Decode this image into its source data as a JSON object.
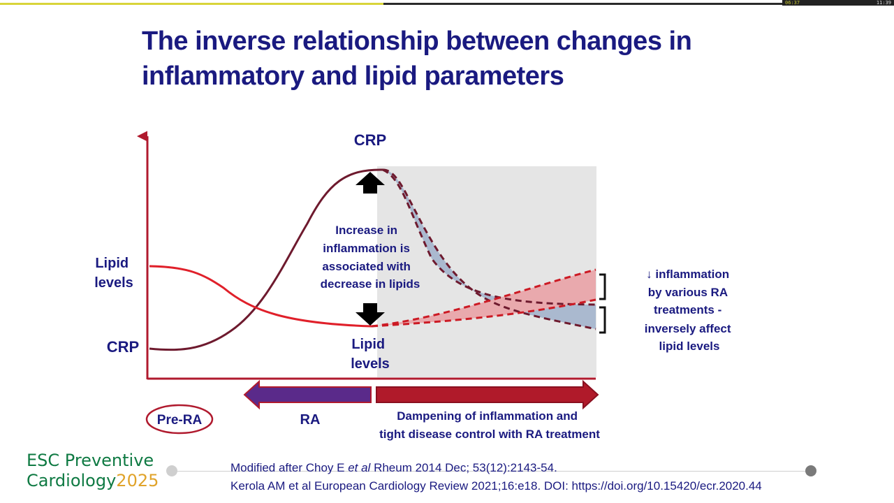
{
  "player": {
    "progress_fraction": 0.49,
    "elapsed_time": "06:37",
    "total_time": "11:39"
  },
  "slide": {
    "title_line1": "The inverse relationship between changes in",
    "title_line2": "inflammatory and lipid parameters"
  },
  "diagram": {
    "crp_top_label": "CRP",
    "increase_text": [
      "Increase in",
      "inflammation is",
      "associated with",
      "decrease in lipids"
    ],
    "lipid_mid_label": [
      "Lipid",
      "levels"
    ],
    "lipid_left_label": [
      "Lipid",
      "levels"
    ],
    "crp_left_label": "CRP",
    "right_note": [
      "↓ inflammation",
      "by various RA",
      "treatments -",
      "inversely affect",
      "lipid levels"
    ],
    "pre_ra_label": "Pre-RA",
    "ra_label": "RA",
    "treatment_label": [
      "Dampening of inflammation and",
      "tight disease control with RA treatment"
    ],
    "colors": {
      "crp_curve": "#6e1a2e",
      "lipid_curve": "#e0202a",
      "axis": "#b01a2e",
      "treatment_shade": "#e5e5e5",
      "crp_band": "#aab9cf",
      "lipid_band": "#e9a9ad",
      "ra_arrow": "#5a2a8a",
      "treatment_arrow": "#b01a2a",
      "text": "#1a1a80"
    }
  },
  "footer": {
    "logo_line1": "ESC Preventive",
    "logo_line2_word": "Cardiology",
    "logo_year": "2025",
    "ref_line1_a": "Modified after Choy E ",
    "ref_line1_em": "et al",
    "ref_line1_b": " Rheum 2014 Dec; 53(12):2143-54.",
    "ref_line2": "Kerola AM et al European Cardiology Review 2021;16:e18. DOI: https://doi.org/10.15420/ecr.2020.44"
  }
}
